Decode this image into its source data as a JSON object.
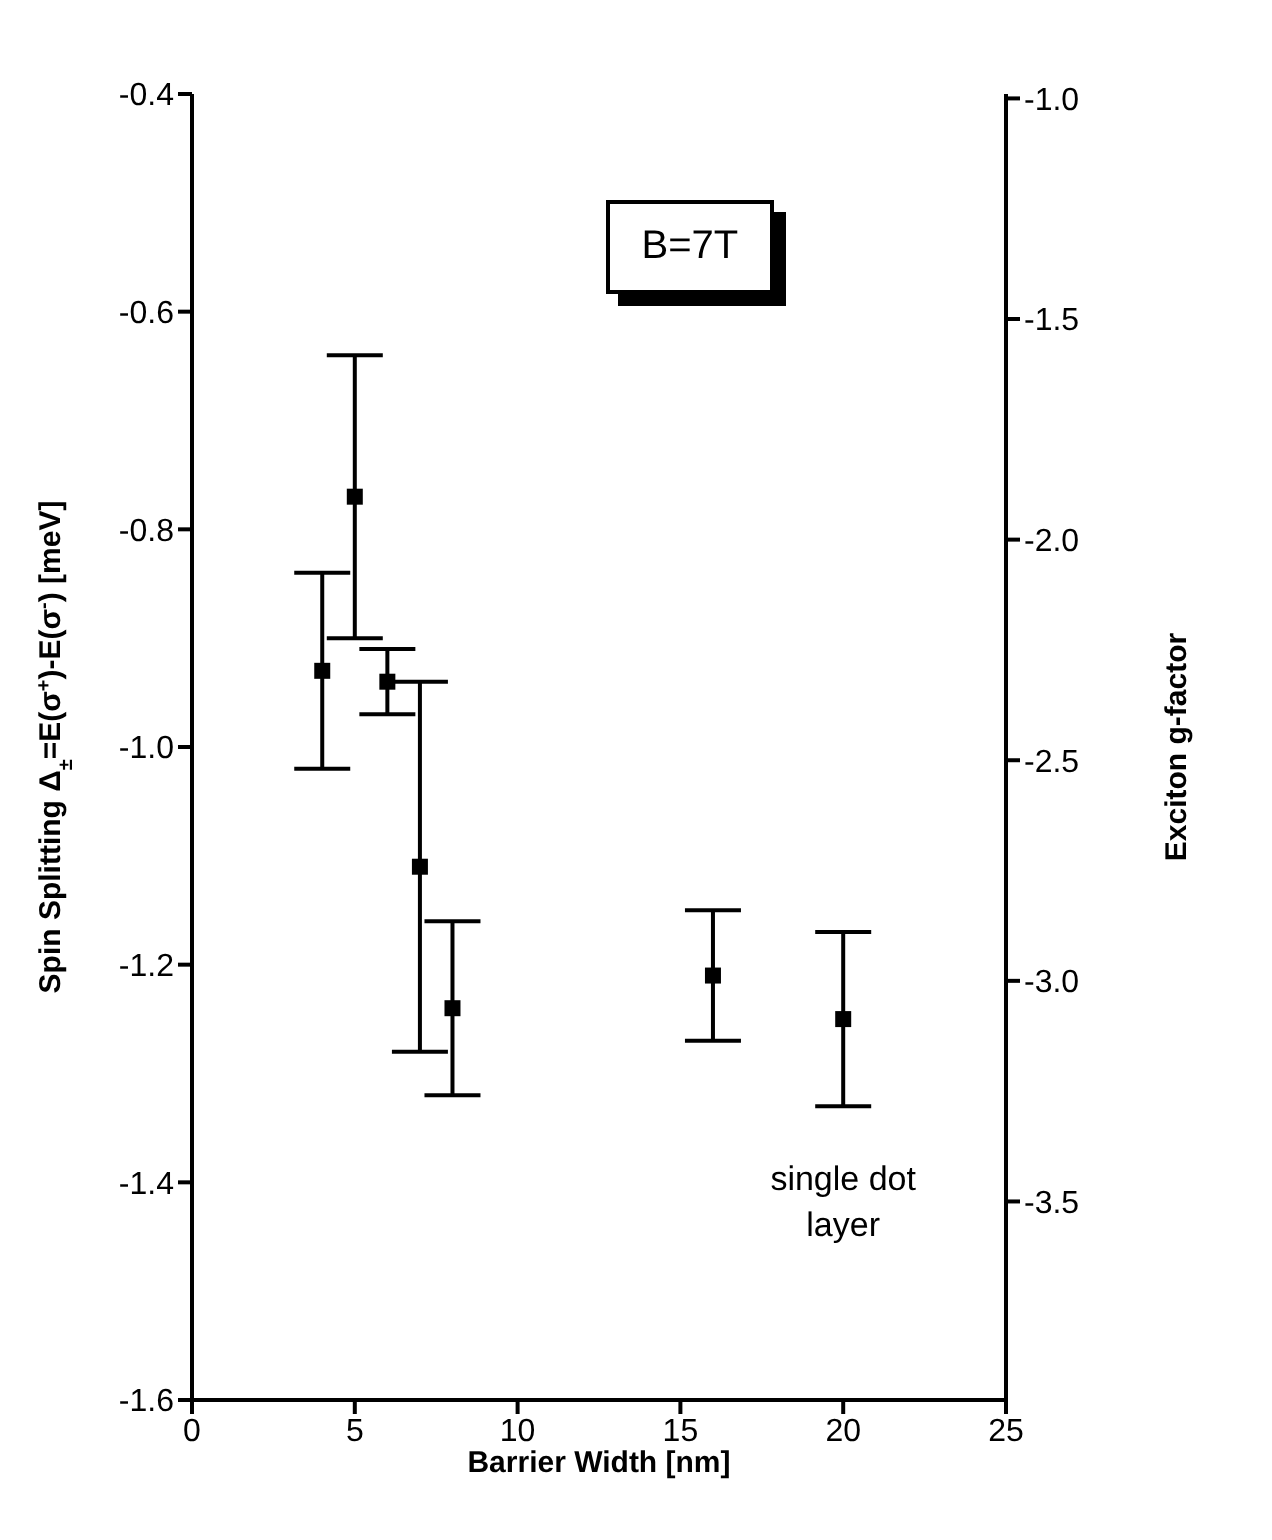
{
  "chart_data": {
    "type": "scatter",
    "xlabel": "Barrier Width [nm]",
    "ylabel": "Spin Splitting Δ$_{±}$=E(σ$^{+}$)-E(σ$^{-}$) [meV]",
    "y2label": "Exciton g-factor",
    "annotations": [
      "B=7T",
      "single dot layer"
    ],
    "x": [
      4,
      5,
      6,
      7,
      8,
      16,
      20
    ],
    "values": [
      -0.93,
      -0.77,
      -0.94,
      -1.11,
      -1.24,
      -1.21,
      -1.25
    ],
    "errors": [
      [
        -1.02,
        -0.84
      ],
      [
        -0.9,
        -0.64
      ],
      [
        -0.97,
        -0.91
      ],
      [
        -1.28,
        -0.94
      ],
      [
        -1.32,
        -1.16
      ],
      [
        -1.27,
        -1.15
      ],
      [
        -1.33,
        -1.17
      ]
    ],
    "color": "#000000",
    "marker": "square",
    "xlim": [
      0,
      25
    ],
    "xticks": [
      0,
      5,
      10,
      15,
      20,
      25
    ],
    "ylim": [
      -1.6,
      -0.4
    ],
    "yticks": [
      -1.6,
      -1.4,
      -1.2,
      {
        "value": -1.0,
        "label": "-1.0"
      },
      -0.8,
      -0.6,
      -0.4
    ],
    "y2lim": [
      -3.95,
      -0.99
    ],
    "y2ticks": [
      -3.5,
      {
        "value": -3.0,
        "label": "-3.0"
      },
      -2.5,
      {
        "value": -2.0,
        "label": "-2.0"
      },
      -1.5,
      {
        "value": -1.0,
        "label": "-1.0"
      }
    ],
    "grid": false
  }
}
